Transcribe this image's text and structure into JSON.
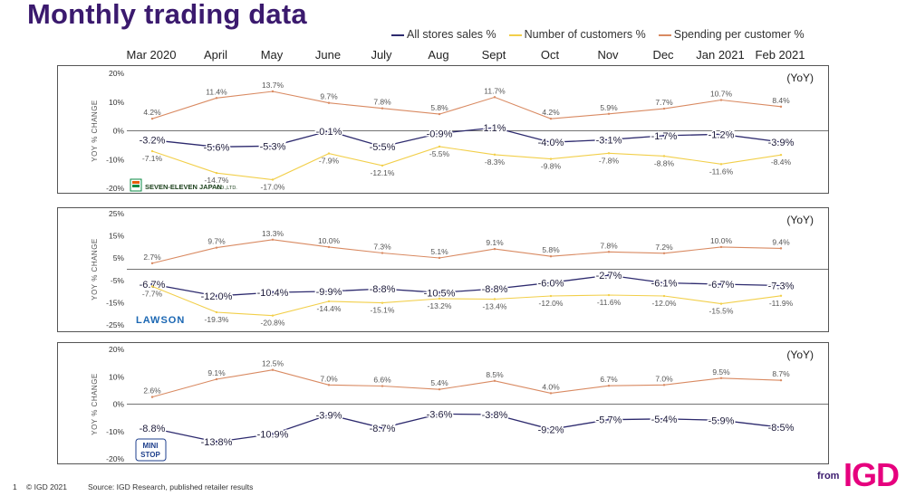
{
  "title": "Monthly trading data",
  "legend": [
    {
      "label": "All stores sales %",
      "color": "#2d2a6e"
    },
    {
      "label": "Number of customers %",
      "color": "#f2cf4a"
    },
    {
      "label": "Spending per customer %",
      "color": "#d98a62"
    }
  ],
  "months": [
    "Mar 2020",
    "April",
    "May",
    "June",
    "July",
    "Aug",
    "Sept",
    "Oct",
    "Nov",
    "Dec",
    "Jan 2021",
    "Feb 2021"
  ],
  "footer": {
    "page_number": "1",
    "copyright": "© IGD 2021",
    "source": "Source: IGD Research, published retailer results"
  },
  "brand": {
    "from": "from",
    "logo": "IGD"
  },
  "chart_data": [
    {
      "type": "line",
      "retailer": "SEVEN-ELEVEN JAPAN CO.,LTD.",
      "logo_text": {
        "main": "SEVEN-ELEVEN JAPAN",
        "suffix": "CO.,LTD."
      },
      "ylabel": "YOY % CHANGE",
      "unit_label": "(YoY)",
      "ylim": [
        -20,
        20
      ],
      "yticks": [
        20,
        10,
        0,
        -10,
        -20
      ],
      "series": [
        {
          "name": "All stores sales %",
          "values": [
            -3.2,
            -5.6,
            -5.3,
            -0.1,
            -5.5,
            -0.9,
            1.1,
            -4.0,
            -3.1,
            -1.7,
            -1.2,
            -3.9
          ]
        },
        {
          "name": "Number of customers %",
          "values": [
            -7.1,
            -14.7,
            -17.0,
            -7.9,
            -12.1,
            -5.5,
            -8.3,
            -9.8,
            -7.8,
            -8.8,
            -11.6,
            -8.4
          ]
        },
        {
          "name": "Spending per customer %",
          "values": [
            4.2,
            11.4,
            13.7,
            9.7,
            7.8,
            5.8,
            11.7,
            4.2,
            5.9,
            7.7,
            10.7,
            8.4
          ]
        }
      ]
    },
    {
      "type": "line",
      "retailer": "LAWSON",
      "logo_text": {
        "main": "LAWSON",
        "suffix": ""
      },
      "ylabel": "YOY % CHANGE",
      "unit_label": "(YoY)",
      "ylim": [
        -25,
        25
      ],
      "yticks": [
        25,
        15,
        5,
        -5,
        -15,
        -25
      ],
      "series": [
        {
          "name": "All stores sales %",
          "values": [
            -6.7,
            -12.0,
            -10.4,
            -9.9,
            -8.8,
            -10.5,
            -8.8,
            -6.0,
            -2.7,
            -6.1,
            -6.7,
            -7.3
          ]
        },
        {
          "name": "Number of customers %",
          "values": [
            -7.7,
            -19.3,
            -20.8,
            -14.4,
            -15.1,
            -13.2,
            -13.4,
            -12.0,
            -11.6,
            -12.0,
            -15.5,
            -11.9
          ]
        },
        {
          "name": "Spending per customer %",
          "values": [
            2.7,
            9.7,
            13.3,
            10.0,
            7.3,
            5.1,
            9.1,
            5.8,
            7.8,
            7.2,
            10.0,
            9.4
          ]
        }
      ]
    },
    {
      "type": "line",
      "retailer": "MINI STOP",
      "logo_text": {
        "main": "MINI",
        "suffix": "STOP"
      },
      "ylabel": "YOY % CHANGE",
      "unit_label": "(YoY)",
      "ylim": [
        -20,
        20
      ],
      "yticks": [
        20,
        10,
        0,
        -10,
        -20
      ],
      "series": [
        {
          "name": "All stores sales %",
          "values": [
            -8.8,
            -13.8,
            -10.9,
            -3.9,
            -8.7,
            -3.6,
            -3.8,
            -9.2,
            -5.7,
            -5.4,
            -5.9,
            -8.5
          ]
        },
        {
          "name": "Spending per customer %",
          "values": [
            2.6,
            9.1,
            12.5,
            7.0,
            6.6,
            5.4,
            8.5,
            4.0,
            6.7,
            7.0,
            9.5,
            8.7
          ]
        }
      ]
    }
  ]
}
